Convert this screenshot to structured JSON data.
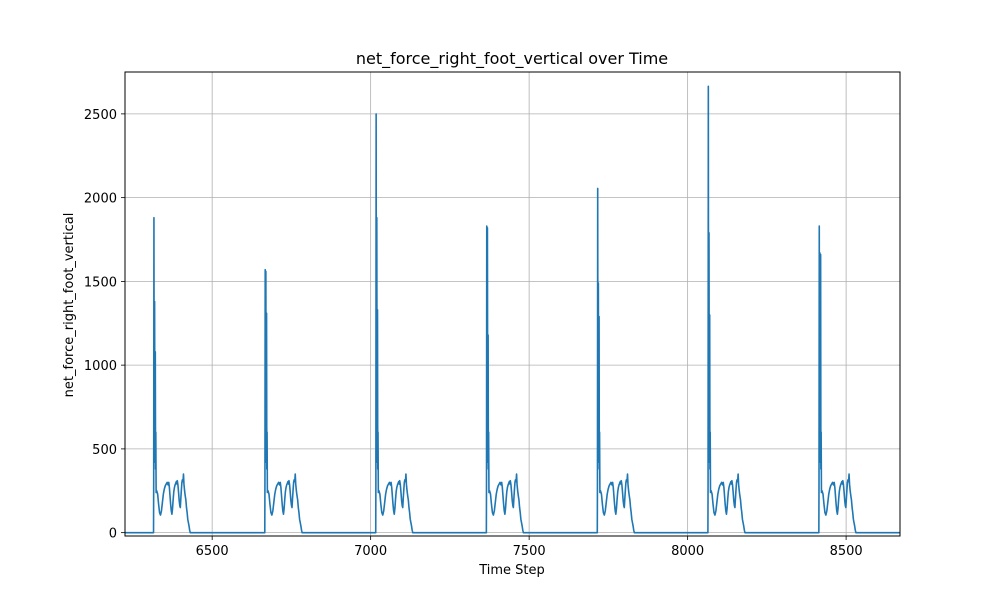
{
  "chart_data": {
    "type": "line",
    "title": "net_force_right_foot_vertical over Time",
    "xlabel": "Time Step",
    "ylabel": "net_force_right_foot_vertical",
    "xlim": [
      6225,
      8670
    ],
    "ylim": [
      -20,
      2750
    ],
    "xticks": [
      6500,
      7000,
      7500,
      8000,
      8500
    ],
    "yticks": [
      0,
      500,
      1000,
      1500,
      2000,
      2500
    ],
    "grid": true,
    "line_color": "#1f77b4",
    "series": [
      {
        "cycles": [
          {
            "start": 6315,
            "peak": 1880,
            "second_peak": 1380,
            "third_peak": 1080,
            "end": 6434
          },
          {
            "start": 6666,
            "peak": 1570,
            "second_peak": 1560,
            "third_peak": 1310,
            "end": 6787
          },
          {
            "start": 7016,
            "peak": 2500,
            "second_peak": 1880,
            "third_peak": 1330,
            "end": 7136
          },
          {
            "start": 7365,
            "peak": 1830,
            "second_peak": 1820,
            "third_peak": 1180,
            "end": 7485
          },
          {
            "start": 7715,
            "peak": 2055,
            "second_peak": 1490,
            "third_peak": 1290,
            "end": 7835
          },
          {
            "start": 8064,
            "peak": 2665,
            "second_peak": 1790,
            "third_peak": 1300,
            "end": 8184
          },
          {
            "start": 8414,
            "peak": 1830,
            "second_peak": 1670,
            "third_peak": 1660,
            "end": 8534
          }
        ],
        "baseline": 0,
        "stance_level": 250,
        "stance_max": 350
      }
    ]
  }
}
